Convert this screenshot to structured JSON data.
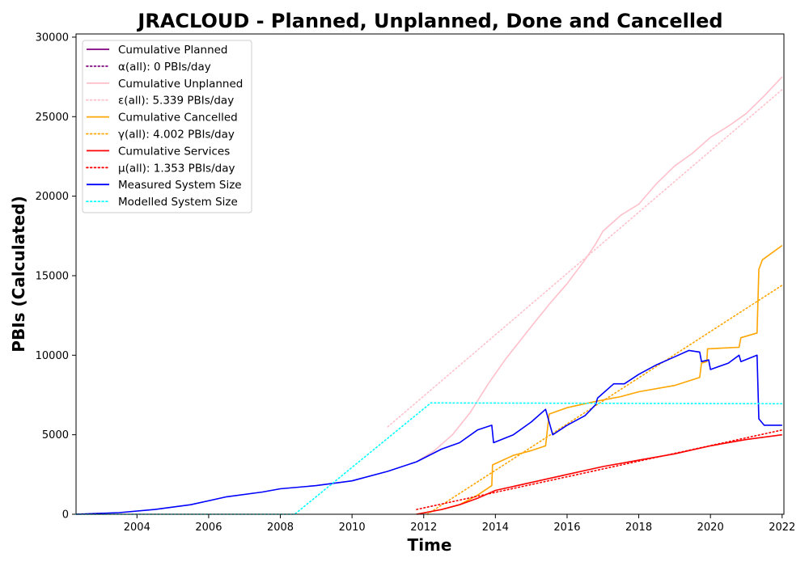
{
  "chart_data": {
    "type": "line",
    "title": "JRACLOUD - Planned, Unplanned, Done  and Cancelled",
    "xlabel": "Time",
    "ylabel": "PBIs (Calculated)",
    "xlim": [
      2002.3,
      2022.05
    ],
    "ylim": [
      0,
      30200
    ],
    "xticks": [
      2004,
      2006,
      2008,
      2010,
      2012,
      2014,
      2016,
      2018,
      2020,
      2022
    ],
    "yticks": [
      0,
      5000,
      10000,
      15000,
      20000,
      25000,
      30000
    ],
    "grid": false,
    "legend_position": "top-left",
    "series": [
      {
        "name": "Cumulative Planned",
        "color": "#800080",
        "style": "solid",
        "points": []
      },
      {
        "name": "α(all): 0 PBIs/day",
        "color": "#800080",
        "style": "dotted",
        "points": []
      },
      {
        "name": "Cumulative Unplanned",
        "color": "#ffc0cb",
        "style": "solid",
        "points": [
          [
            2011.8,
            3300
          ],
          [
            2012.3,
            4000
          ],
          [
            2012.8,
            5000
          ],
          [
            2013.3,
            6400
          ],
          [
            2013.8,
            8200
          ],
          [
            2014.3,
            9800
          ],
          [
            2015.0,
            11800
          ],
          [
            2015.5,
            13200
          ],
          [
            2016.0,
            14500
          ],
          [
            2016.5,
            16000
          ],
          [
            2016.8,
            17000
          ],
          [
            2017.0,
            17800
          ],
          [
            2017.5,
            18800
          ],
          [
            2018.0,
            19500
          ],
          [
            2018.5,
            20800
          ],
          [
            2019.0,
            21900
          ],
          [
            2019.5,
            22700
          ],
          [
            2020.0,
            23700
          ],
          [
            2020.5,
            24400
          ],
          [
            2021.0,
            25200
          ],
          [
            2021.5,
            26300
          ],
          [
            2022.0,
            27500
          ]
        ]
      },
      {
        "name": "ε(all): 5.339 PBIs/day",
        "color": "#ffc0cb",
        "style": "dotted",
        "points": [
          [
            2011.0,
            5500
          ],
          [
            2022.0,
            26700
          ]
        ]
      },
      {
        "name": "Cumulative Cancelled",
        "color": "#ffa500",
        "style": "solid",
        "points": [
          [
            2011.8,
            0
          ],
          [
            2012.5,
            300
          ],
          [
            2013.0,
            600
          ],
          [
            2013.5,
            1200
          ],
          [
            2013.9,
            1800
          ],
          [
            2013.92,
            3100
          ],
          [
            2014.5,
            3700
          ],
          [
            2015.0,
            4000
          ],
          [
            2015.4,
            4300
          ],
          [
            2015.5,
            6300
          ],
          [
            2016.0,
            6700
          ],
          [
            2016.8,
            7100
          ],
          [
            2017.5,
            7400
          ],
          [
            2018.0,
            7700
          ],
          [
            2019.0,
            8100
          ],
          [
            2019.7,
            8600
          ],
          [
            2019.75,
            9500
          ],
          [
            2019.9,
            9600
          ],
          [
            2019.92,
            10400
          ],
          [
            2020.8,
            10500
          ],
          [
            2020.85,
            11100
          ],
          [
            2021.3,
            11400
          ],
          [
            2021.35,
            15400
          ],
          [
            2021.45,
            16000
          ],
          [
            2022.0,
            16900
          ]
        ]
      },
      {
        "name": "γ(all): 4.002 PBIs/day",
        "color": "#ffa500",
        "style": "dotted",
        "points": [
          [
            2012.1,
            0
          ],
          [
            2022.0,
            14400
          ]
        ]
      },
      {
        "name": "Cumulative Services",
        "color": "#ff0000",
        "style": "solid",
        "points": [
          [
            2011.8,
            0
          ],
          [
            2012.5,
            300
          ],
          [
            2013.0,
            600
          ],
          [
            2013.5,
            1000
          ],
          [
            2014.0,
            1500
          ],
          [
            2015.0,
            2000
          ],
          [
            2016.0,
            2500
          ],
          [
            2017.0,
            3000
          ],
          [
            2018.0,
            3400
          ],
          [
            2019.0,
            3800
          ],
          [
            2020.0,
            4300
          ],
          [
            2021.0,
            4700
          ],
          [
            2022.0,
            5000
          ]
        ]
      },
      {
        "name": "μ(all): 1.353 PBIs/day",
        "color": "#ff0000",
        "style": "dotted",
        "points": [
          [
            2011.8,
            300
          ],
          [
            2022.0,
            5300
          ]
        ]
      },
      {
        "name": "Measured System Size",
        "color": "#0000ff",
        "style": "solid",
        "points": [
          [
            2002.3,
            0
          ],
          [
            2003.5,
            100
          ],
          [
            2004.5,
            300
          ],
          [
            2005.5,
            600
          ],
          [
            2006.5,
            1100
          ],
          [
            2007.5,
            1400
          ],
          [
            2008.0,
            1600
          ],
          [
            2009.0,
            1800
          ],
          [
            2010.0,
            2100
          ],
          [
            2011.0,
            2700
          ],
          [
            2011.8,
            3300
          ],
          [
            2012.5,
            4100
          ],
          [
            2013.0,
            4500
          ],
          [
            2013.5,
            5300
          ],
          [
            2013.9,
            5600
          ],
          [
            2013.95,
            4500
          ],
          [
            2014.5,
            5000
          ],
          [
            2015.0,
            5800
          ],
          [
            2015.4,
            6600
          ],
          [
            2015.6,
            5000
          ],
          [
            2016.0,
            5600
          ],
          [
            2016.5,
            6200
          ],
          [
            2016.8,
            6900
          ],
          [
            2016.85,
            7300
          ],
          [
            2017.3,
            8200
          ],
          [
            2017.6,
            8200
          ],
          [
            2018.0,
            8800
          ],
          [
            2018.5,
            9400
          ],
          [
            2019.0,
            9900
          ],
          [
            2019.4,
            10300
          ],
          [
            2019.7,
            10200
          ],
          [
            2019.75,
            9600
          ],
          [
            2019.95,
            9700
          ],
          [
            2020.0,
            9100
          ],
          [
            2020.5,
            9500
          ],
          [
            2020.8,
            10000
          ],
          [
            2020.85,
            9600
          ],
          [
            2021.3,
            10000
          ],
          [
            2021.35,
            6000
          ],
          [
            2021.5,
            5600
          ],
          [
            2022.0,
            5600
          ]
        ]
      },
      {
        "name": "Modelled System Size",
        "color": "#00ffff",
        "style": "dotted",
        "points": [
          [
            2002.3,
            0
          ],
          [
            2008.4,
            0
          ],
          [
            2012.2,
            7000
          ],
          [
            2022.0,
            6950
          ]
        ]
      }
    ]
  }
}
